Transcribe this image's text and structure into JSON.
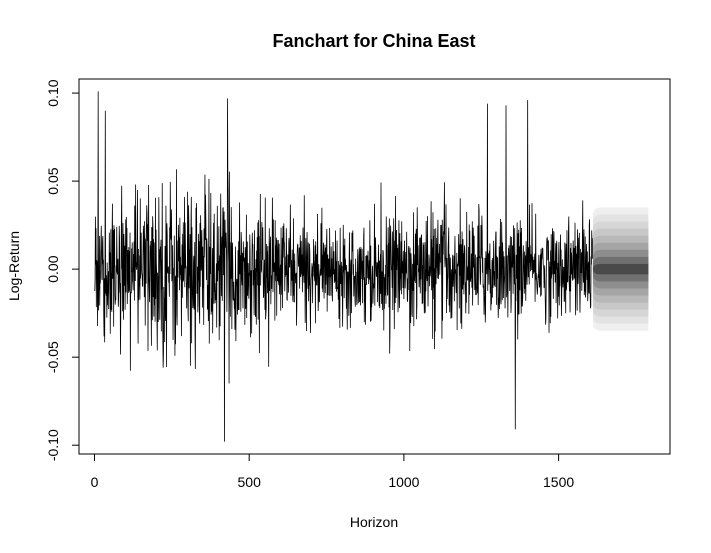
{
  "chart_data": {
    "type": "line",
    "title": "Fanchart for China East",
    "xlabel": "Horizon",
    "ylabel": "Log-Return",
    "xlim": [
      -50,
      1860
    ],
    "ylim": [
      -0.105,
      0.108
    ],
    "x_ticks": [
      0,
      500,
      1000,
      1500
    ],
    "x_tick_labels": [
      "0",
      "500",
      "1000",
      "1500"
    ],
    "y_ticks": [
      -0.1,
      -0.05,
      0.0,
      0.05,
      0.1
    ],
    "y_tick_labels": [
      "-0.10",
      "-0.05",
      "0.00",
      "0.05",
      "0.10"
    ],
    "grid": false,
    "legend": "none",
    "series": [
      {
        "color": "#000000",
        "x_start": 1,
        "x_end": 1610,
        "n_points": 1610,
        "range": [
          -0.098,
          0.101
        ],
        "approx_std": 0.02,
        "notable_points": [
          {
            "x": 12,
            "y": 0.101
          },
          {
            "x": 35,
            "y": 0.09
          },
          {
            "x": 420,
            "y": -0.098
          },
          {
            "x": 430,
            "y": 0.097
          },
          {
            "x": 1270,
            "y": 0.094
          },
          {
            "x": 1330,
            "y": 0.093
          },
          {
            "x": 1360,
            "y": -0.091
          },
          {
            "x": 1400,
            "y": 0.096
          }
        ]
      }
    ],
    "fan": {
      "x_start": 1611,
      "x_end": 1790,
      "center": 0.0,
      "outer_bound": 0.035,
      "band_halfwidths": [
        0.035,
        0.031,
        0.027,
        0.023,
        0.019,
        0.015,
        0.011,
        0.007,
        0.003
      ],
      "band_colors": [
        "#efefef",
        "#e3e3e3",
        "#d6d6d6",
        "#c8c8c8",
        "#b8b8b8",
        "#a5a5a5",
        "#8e8e8e",
        "#717171",
        "#4a4a4a"
      ]
    }
  }
}
